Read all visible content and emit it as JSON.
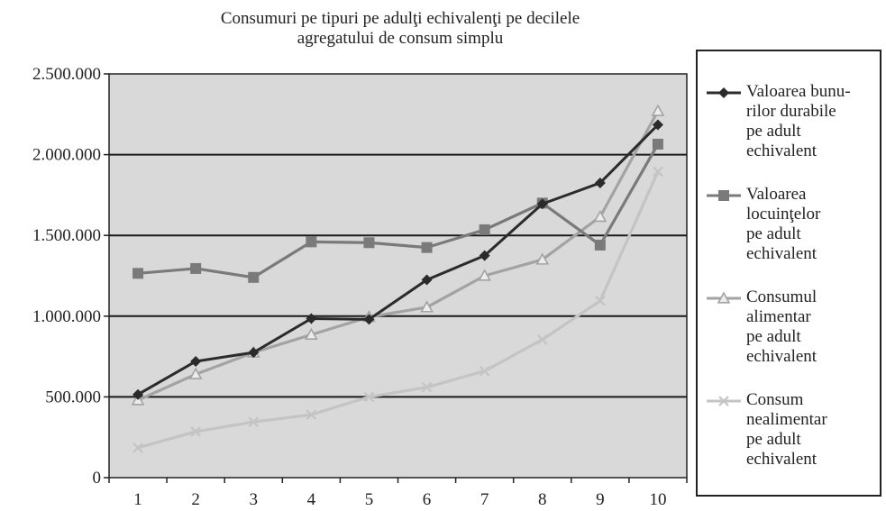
{
  "chart_data": {
    "type": "line",
    "title": [
      "Consumuri pe tipuri pe adulţi echivalenţi pe decilele",
      "agregatului de consum simplu"
    ],
    "categories": [
      "1",
      "2",
      "3",
      "4",
      "5",
      "6",
      "7",
      "8",
      "9",
      "10"
    ],
    "ylim": [
      0,
      2500000
    ],
    "yticks": [
      0,
      500000,
      1000000,
      1500000,
      2000000,
      2500000
    ],
    "ytick_labels": [
      "0",
      "500.000",
      "1.000.000",
      "1.500.000",
      "2.000.000",
      "2.500.000"
    ],
    "grid": true,
    "plot_background": "#d9d9d9",
    "legend_position": "right",
    "series": [
      {
        "name": [
          "Valoarea bunu-",
          "rilor durabile",
          "pe adult",
          "echivalent"
        ],
        "color": "#2b2b2b",
        "marker": "diamond",
        "values": [
          515000,
          720000,
          775000,
          985000,
          980000,
          1225000,
          1375000,
          1695000,
          1825000,
          2185000
        ]
      },
      {
        "name": [
          "Valoarea",
          "locuinţelor",
          "pe adult",
          "echivalent"
        ],
        "color": "#7a7a7a",
        "marker": "square",
        "values": [
          1265000,
          1295000,
          1240000,
          1460000,
          1455000,
          1425000,
          1535000,
          1700000,
          1440000,
          2065000
        ]
      },
      {
        "name": [
          "Consumul",
          "alimentar",
          "pe adult",
          "echivalent"
        ],
        "color": "#a3a3a3",
        "marker": "triangle",
        "values": [
          480000,
          640000,
          775000,
          885000,
          995000,
          1055000,
          1250000,
          1350000,
          1615000,
          2270000
        ]
      },
      {
        "name": [
          "Consum",
          "nealimentar",
          "pe adult",
          "echivalent"
        ],
        "color": "#c4c4c4",
        "marker": "x",
        "values": [
          185000,
          285000,
          345000,
          390000,
          500000,
          560000,
          660000,
          855000,
          1095000,
          1895000
        ]
      }
    ]
  }
}
